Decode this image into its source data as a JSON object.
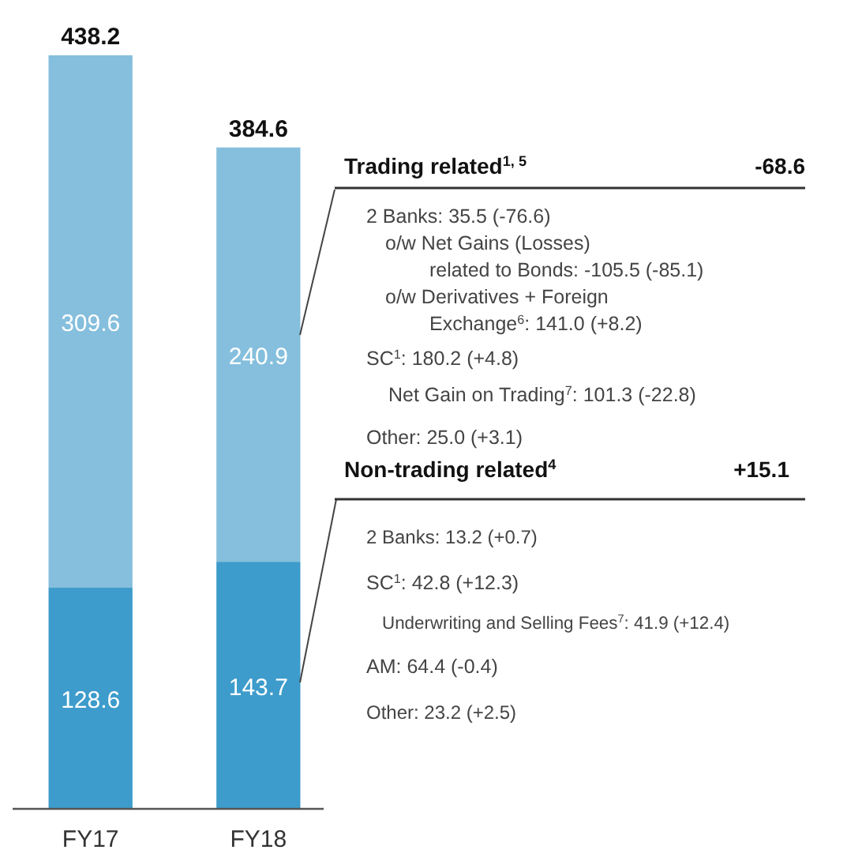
{
  "chart_data": {
    "type": "bar",
    "stacked": true,
    "data_labels": true,
    "categories": [
      "FY17",
      "FY18"
    ],
    "series": [
      {
        "color": "#3d9ccb",
        "values": [
          128.6,
          143.7
        ]
      },
      {
        "color": "#85bfdd",
        "values": [
          309.6,
          240.9
        ]
      }
    ],
    "totals": [
      "438.2",
      "384.6"
    ],
    "annotations": [
      "Trading related$^{1, 5}$",
      "-68.6",
      "2 Banks: 35.5 (-76.6)",
      "o/w Net Gains (Losses)",
      "related to Bonds: -105.5 (-85.1)",
      "o/w Derivatives + Foreign",
      "Exchange$^{6}$: 141.0 (+8.2)",
      "SC$^{1}$: 180.2 (+4.8)",
      "Net Gain on Trading$^{7}$: 101.3 (-22.8)",
      "Other: 25.0 (+3.1)",
      "Non-trading related$^{4}$",
      "+15.1",
      "2 Banks: 13.2 (+0.7)",
      "SC$^{1}$: 42.8 (+12.3)",
      "Underwriting and Selling Fees$^{7}$: 41.9 (+12.4)",
      "AM: 64.4 (-0.4)",
      "Other: 23.2 (+2.5)"
    ]
  }
}
